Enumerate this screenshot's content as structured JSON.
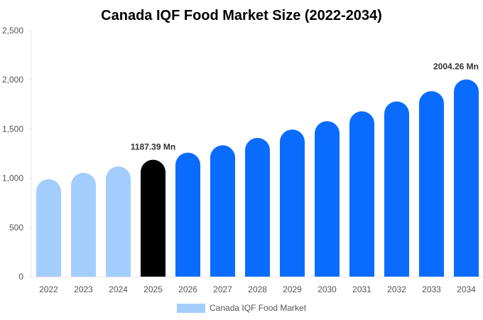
{
  "chart_data": {
    "type": "bar",
    "title": "Canada IQF Food Market Size (2022-2034)",
    "xlabel": "",
    "ylabel": "",
    "categories": [
      "2022",
      "2023",
      "2024",
      "2025",
      "2026",
      "2027",
      "2028",
      "2029",
      "2030",
      "2031",
      "2032",
      "2033",
      "2034"
    ],
    "values": [
      990,
      1055,
      1120,
      1187.39,
      1260,
      1335,
      1410,
      1495,
      1580,
      1680,
      1780,
      1885,
      2004.26
    ],
    "bar_colors": [
      "#a3cdfd",
      "#a3cdfd",
      "#a3cdfd",
      "#000000",
      "#0a6cff",
      "#0a6cff",
      "#0a6cff",
      "#0a6cff",
      "#0a6cff",
      "#0a6cff",
      "#0a6cff",
      "#0a6cff",
      "#0a6cff"
    ],
    "data_labels": [
      {
        "category": "2025",
        "text": "1187.39 Mn"
      },
      {
        "category": "2034",
        "text": "2004.26 Mn"
      }
    ],
    "ylim": [
      0,
      2500
    ],
    "yticks": [
      0,
      500,
      1000,
      1500,
      2000,
      2500
    ],
    "ytick_labels": [
      "0",
      "500",
      "1,000",
      "1,500",
      "2,000",
      "2,500"
    ],
    "grid": false,
    "legend": {
      "placement": "bottom-center",
      "label": "Canada IQF Food Market",
      "color": "#a3cdfd"
    }
  }
}
